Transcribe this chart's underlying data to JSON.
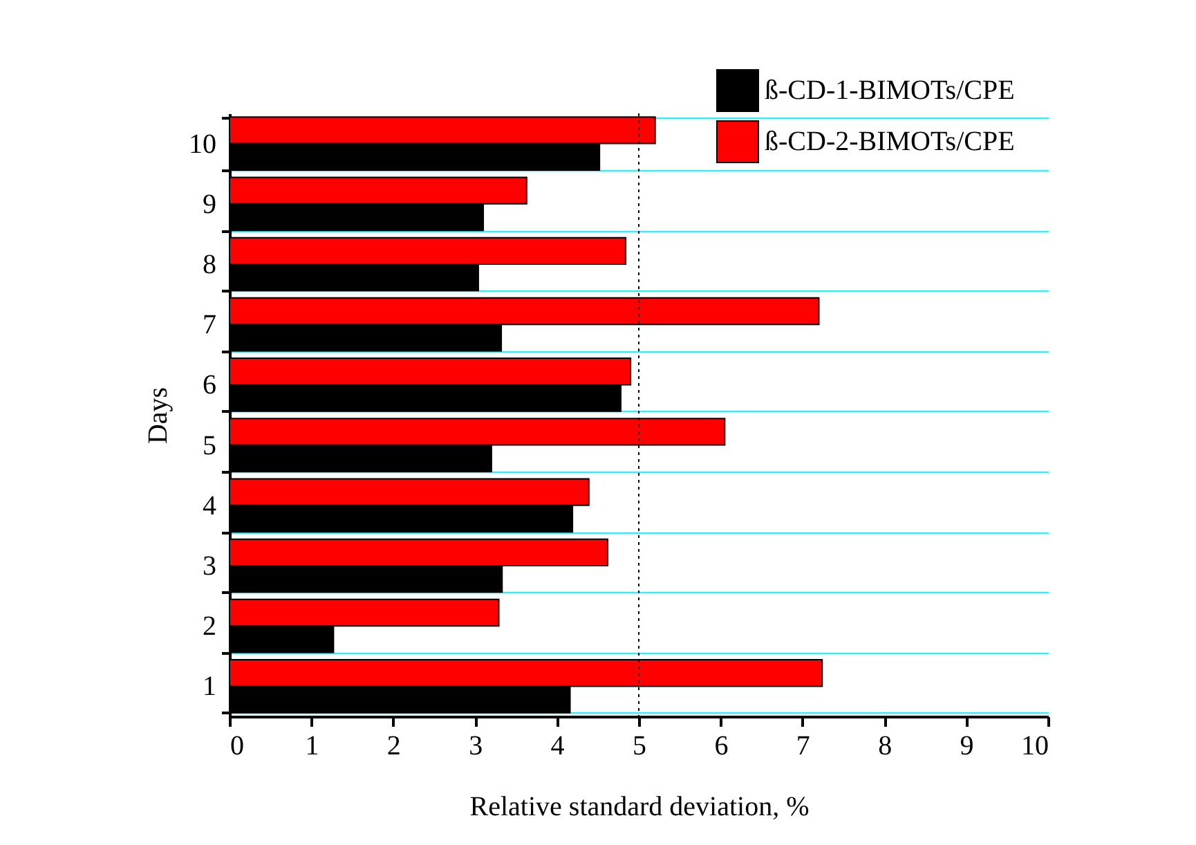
{
  "chart_data": {
    "type": "bar",
    "orientation": "horizontal",
    "categories": [
      "10",
      "9",
      "8",
      "7",
      "6",
      "5",
      "4",
      "3",
      "2",
      "1"
    ],
    "series": [
      {
        "name": "ß-CD-1-BIMOTs/CPE",
        "color": "#000000",
        "values": [
          4.52,
          3.1,
          3.04,
          3.32,
          4.78,
          3.2,
          4.19,
          3.33,
          1.27,
          4.16
        ]
      },
      {
        "name": "ß-CD-2-BIMOTs/CPE",
        "color": "#ff0000",
        "values": [
          5.2,
          3.63,
          4.84,
          7.2,
          4.9,
          6.05,
          4.39,
          4.62,
          3.29,
          7.24
        ]
      }
    ],
    "xlim": [
      0,
      10
    ],
    "xticks": [
      0,
      1,
      2,
      3,
      4,
      5,
      6,
      7,
      8,
      9,
      10
    ],
    "xlabel": "Relative standard deviation, %",
    "ylabel": "Days",
    "ref_lines": [
      {
        "axis": "x",
        "value": 5,
        "line_style": "dotted"
      }
    ],
    "grid": "y",
    "legend": "top right"
  }
}
